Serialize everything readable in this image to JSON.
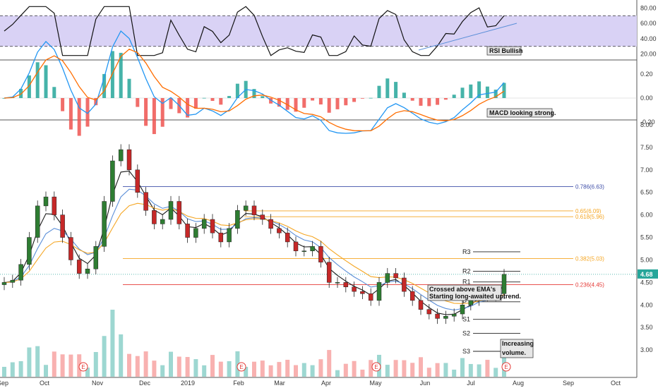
{
  "chart_data": {
    "type": "candlestick",
    "x_labels": [
      "Sep",
      "Oct",
      "Nov",
      "Dec",
      "2019",
      "Feb",
      "Mar",
      "Apr",
      "May",
      "Jun",
      "Jul",
      "Aug",
      "Sep",
      "Oct"
    ],
    "price_axis": {
      "min": 2.5,
      "max": 8.0,
      "ticks": [
        "8.00",
        "7.50",
        "7.00",
        "6.50",
        "6.00",
        "5.50",
        "5.00",
        "4.50",
        "4.00",
        "3.50",
        "3.00"
      ]
    },
    "last_price_label": "4.68",
    "close_series": [
      4.5,
      4.55,
      4.9,
      5.5,
      6.2,
      6.4,
      6.0,
      5.5,
      5.0,
      4.7,
      4.8,
      5.3,
      6.3,
      7.2,
      7.45,
      7.0,
      6.5,
      6.1,
      5.8,
      5.9,
      6.3,
      5.8,
      5.5,
      5.7,
      5.9,
      5.6,
      5.4,
      5.7,
      6.1,
      6.2,
      6.0,
      5.9,
      5.7,
      5.6,
      5.4,
      5.2,
      5.2,
      5.3,
      4.95,
      4.5,
      4.5,
      4.4,
      4.3,
      4.25,
      4.1,
      4.5,
      4.7,
      4.6,
      4.3,
      4.1,
      3.9,
      3.8,
      3.7,
      3.75,
      3.8,
      4.0,
      4.1,
      4.3,
      4.2,
      4.25,
      4.68
    ],
    "fib_levels": [
      {
        "label": "0.786(6.63)",
        "value": 6.63,
        "color": "#3f4fa8"
      },
      {
        "label": "0.65(6.09)",
        "value": 6.09,
        "color": "#f5a623"
      },
      {
        "label": "0.618(5.96)",
        "value": 5.96,
        "color": "#f5a623"
      },
      {
        "label": "0.382(5.03)",
        "value": 5.03,
        "color": "#f5a623"
      },
      {
        "label": "0.236(4.45)",
        "value": 4.45,
        "color": "#e53935"
      }
    ],
    "pivots": [
      {
        "label": "R3",
        "value": 5.18
      },
      {
        "label": "R2",
        "value": 4.75
      },
      {
        "label": "R1",
        "value": 4.51
      },
      {
        "label": "P",
        "value": 4.07
      },
      {
        "label": "S1",
        "value": 3.68
      },
      {
        "label": "S2",
        "value": 3.37
      },
      {
        "label": "S3",
        "value": 2.97
      }
    ],
    "rsi": {
      "axis_ticks": [
        "80.00",
        "60.00",
        "40.00",
        "20.00"
      ],
      "band": [
        30,
        70
      ]
    },
    "macd": {
      "axis_ticks": [
        "0.20",
        "0.00",
        "-0.20"
      ]
    },
    "earnings_marker": "E",
    "annotations": {
      "rsi": "RSI Bullish",
      "macd": "MACD looking strong.",
      "ema_line1": "Crossed above EMA's",
      "ema_line2": "Starting long-awaited uptrend.",
      "vol_line1": "Increasing",
      "vol_line2": "volume."
    },
    "colors": {
      "up": "#26a69a",
      "down": "#ef5350",
      "candle_up": "#2e7d32",
      "candle_down": "#c62828",
      "rsi_band": "#d9d2f5",
      "macd": "#2196f3",
      "signal": "#ff6d00",
      "ema_fast": "#1a1a1a",
      "ema_mid": "#5b8fd8",
      "ema_slow": "#f5a623"
    }
  }
}
